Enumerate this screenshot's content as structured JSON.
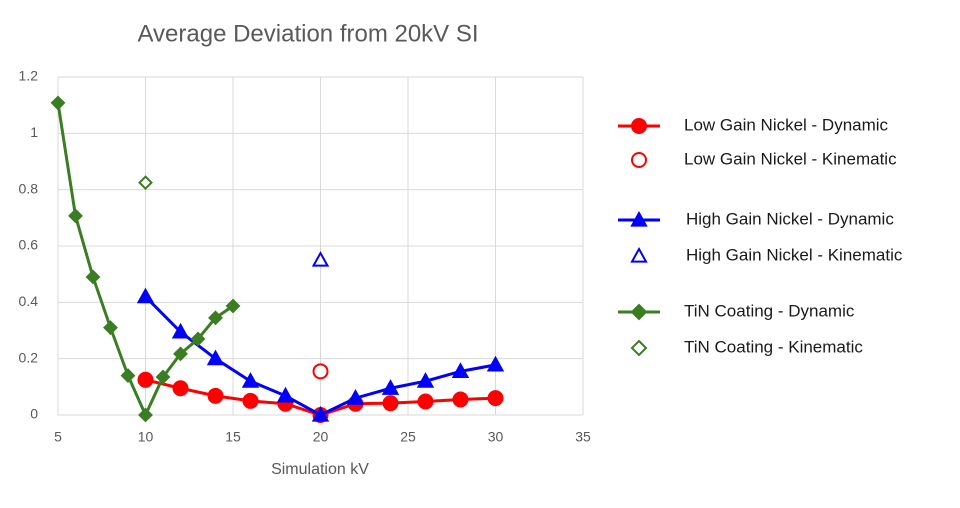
{
  "chart_data": {
    "type": "line",
    "title": "Average Deviation from 20kV SI",
    "x_label": "Simulation kV",
    "xlim": [
      5,
      35
    ],
    "xticks": [
      5,
      10,
      15,
      20,
      25,
      30,
      35
    ],
    "ylim": [
      0,
      1.2
    ],
    "yticks": [
      0,
      0.2,
      0.4,
      0.6,
      0.8,
      1,
      1.2
    ],
    "grid": true,
    "legend_position": "right",
    "series": [
      {
        "name": "Low Gain Nickel - Dynamic",
        "color": "#ff0000",
        "marker": "circle",
        "filled": true,
        "line": true,
        "x": [
          10,
          12,
          14,
          16,
          18,
          20,
          22,
          24,
          26,
          28,
          30
        ],
        "values": [
          0.125,
          0.095,
          0.068,
          0.05,
          0.04,
          0,
          0.04,
          0.042,
          0.048,
          0.055,
          0.06
        ]
      },
      {
        "name": "Low Gain Nickel - Kinematic",
        "color": "#ff0000",
        "marker": "circle",
        "filled": false,
        "line": false,
        "x": [
          20
        ],
        "values": [
          0.155
        ]
      },
      {
        "name": "High Gain Nickel - Dynamic",
        "color": "#0000ff",
        "marker": "triangle",
        "filled": true,
        "line": true,
        "x": [
          10,
          12,
          14,
          16,
          18,
          20,
          22,
          24,
          26,
          28,
          30
        ],
        "values": [
          0.42,
          0.295,
          0.2,
          0.12,
          0.068,
          0,
          0.06,
          0.095,
          0.12,
          0.155,
          0.178
        ]
      },
      {
        "name": "High Gain Nickel - Kinematic",
        "color": "#0000ff",
        "marker": "triangle",
        "filled": false,
        "line": false,
        "x": [
          20
        ],
        "values": [
          0.55
        ]
      },
      {
        "name": "TiN Coating - Dynamic",
        "color": "#3a7d22",
        "marker": "diamond",
        "filled": true,
        "line": true,
        "x": [
          5,
          6,
          7,
          8,
          9,
          10,
          11,
          12,
          13,
          14,
          15
        ],
        "values": [
          1.108,
          0.707,
          0.49,
          0.31,
          0.14,
          0,
          0.135,
          0.217,
          0.27,
          0.345,
          0.387
        ]
      },
      {
        "name": "TiN Coating - Kinematic",
        "color": "#3a7d22",
        "marker": "diamond",
        "filled": false,
        "line": false,
        "x": [
          10
        ],
        "values": [
          0.825
        ]
      }
    ]
  }
}
